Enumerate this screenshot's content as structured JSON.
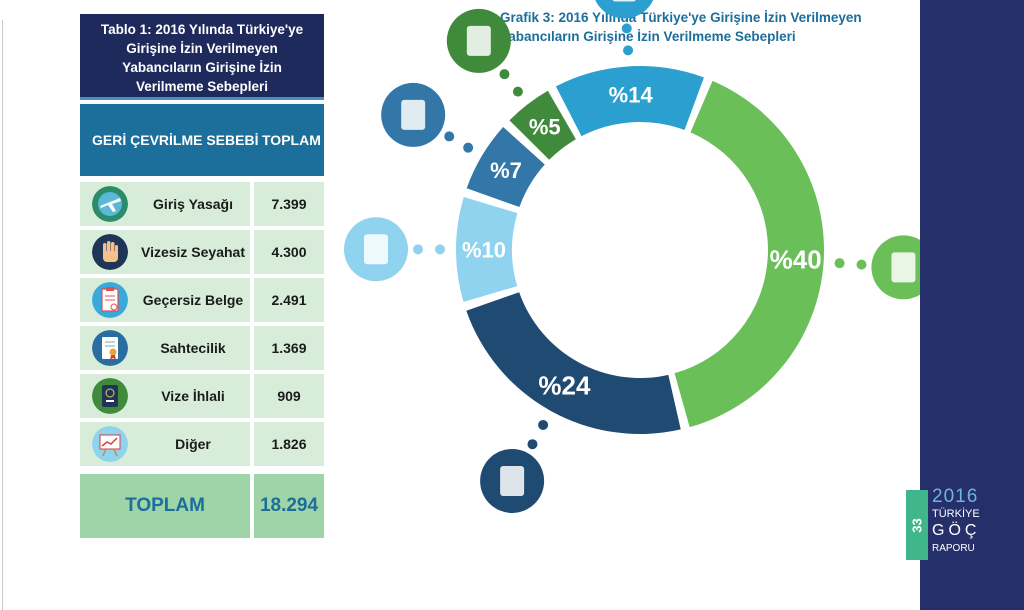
{
  "table": {
    "title": "Tablo 1: 2016 Yılında Türkiye'ye Girişine İzin Verilmeyen Yabancıların Girişine İzin Verilmeme Sebepleri",
    "col_reason": "GERİ ÇEVRİLME SEBEBİ",
    "col_total": "TOPLAM",
    "rows": [
      {
        "label": "Giriş Yasağı",
        "value": "7.399",
        "icon": "plane-globe-icon"
      },
      {
        "label": "Vizesiz Seyahat",
        "value": "4.300",
        "icon": "hand-stop-icon"
      },
      {
        "label": "Geçersiz Belge",
        "value": "2.491",
        "icon": "invalid-document-icon"
      },
      {
        "label": "Sahtecilik",
        "value": "1.369",
        "icon": "certificate-icon"
      },
      {
        "label": "Vize İhlali",
        "value": "909",
        "icon": "passport-icon"
      },
      {
        "label": "Diğer",
        "value": "1.826",
        "icon": "chart-board-icon"
      }
    ],
    "total_label": "TOPLAM",
    "total_value": "18.294"
  },
  "chart": {
    "title": "Grafik 3: 2016 Yılında Türkiye'ye Girişine İzin Verilmeyen Yabancıların Girişine İzin Verilmeme Sebepleri"
  },
  "chart_data": {
    "type": "pie",
    "donut": true,
    "categories": [
      "Giriş Yasağı",
      "Vizesiz Seyahat",
      "Diğer",
      "Sahtecilik",
      "Vize İhlali",
      "Geçersiz Belge"
    ],
    "values": [
      40,
      24,
      10,
      7,
      5,
      14
    ],
    "labels": [
      "%40",
      "%24",
      "%10",
      "%7",
      "%5",
      "%14"
    ],
    "colors": [
      "#6bbf59",
      "#1f4a72",
      "#8fd3ee",
      "#3377a8",
      "#3f8a3b",
      "#2a9fd0"
    ],
    "icons": [
      "plane-globe-icon",
      "hand-stop-icon",
      "chart-board-icon",
      "certificate-icon",
      "passport-icon",
      "invalid-document-icon"
    ]
  },
  "footer": {
    "page_number": "33",
    "year": "2016",
    "line1": "TÜRKİYE",
    "line2": "GÖÇ",
    "line3": "RAPORU"
  },
  "colors": {
    "navy": "#1f2a5c",
    "teal_header": "#1c6e9b",
    "row_bg": "#d7ecd9",
    "total_bg": "#9fd3a8",
    "band": "#25306a",
    "page_tab": "#3fb68c"
  }
}
